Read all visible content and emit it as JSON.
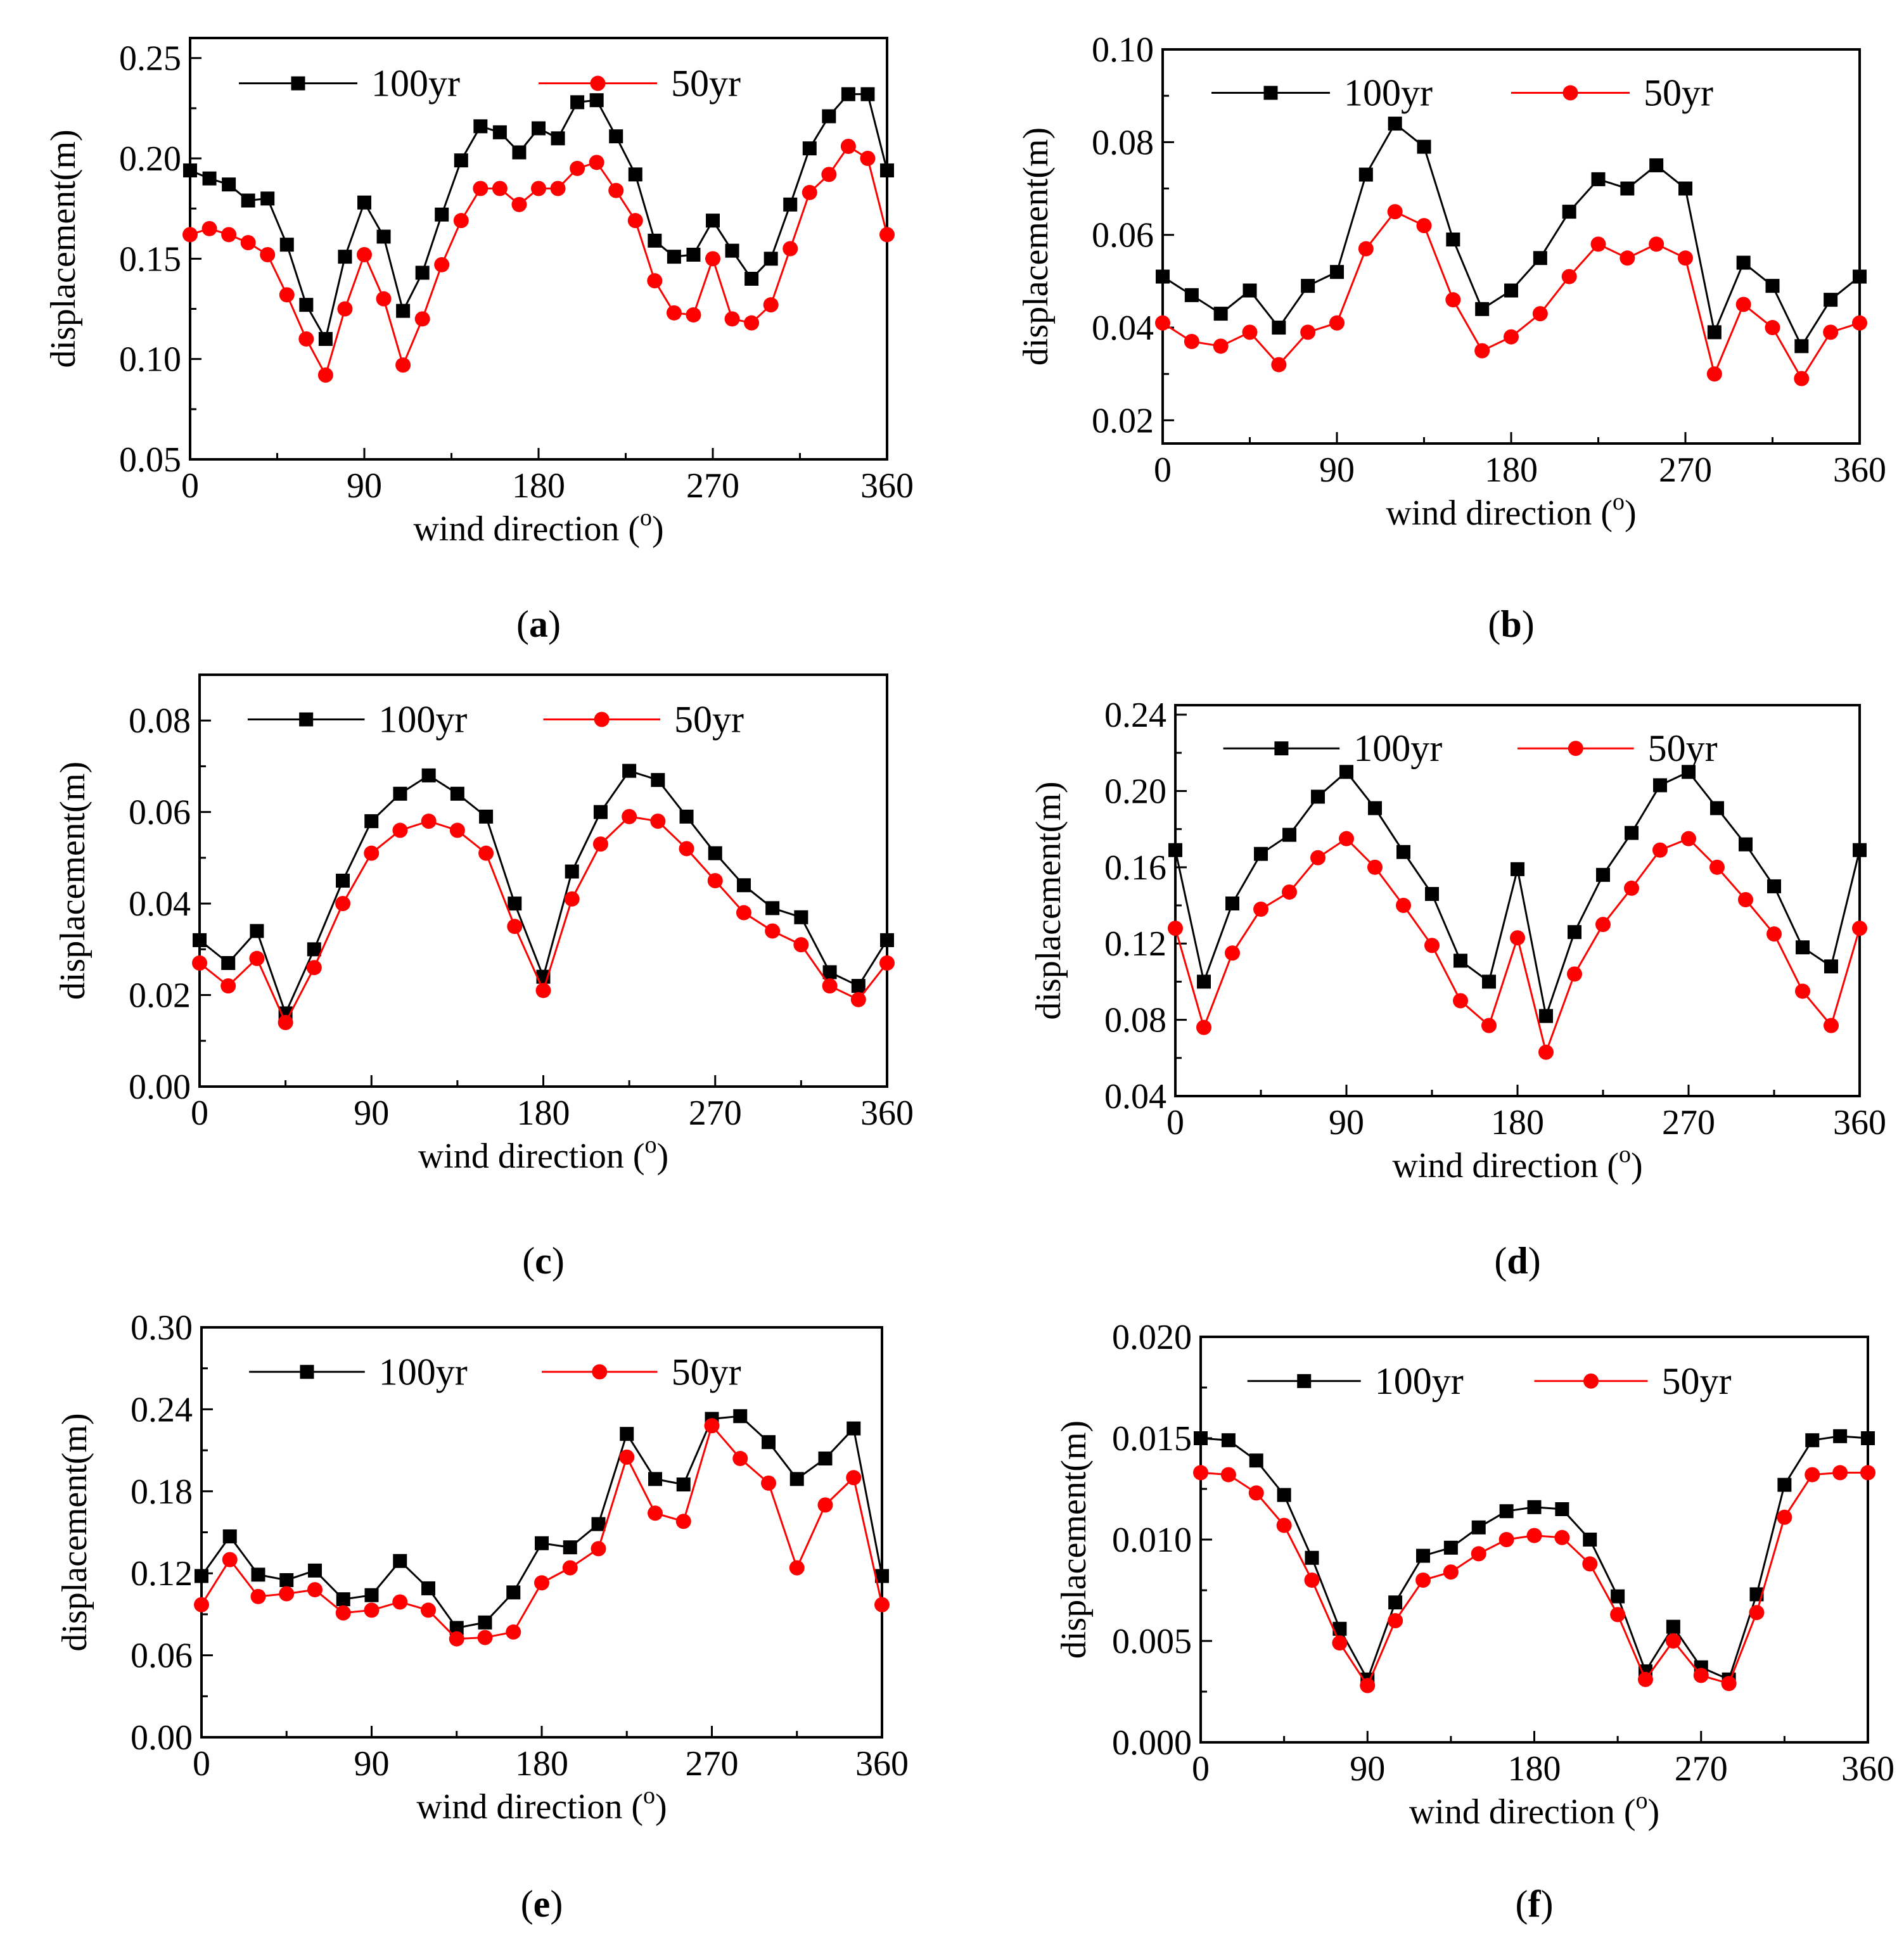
{
  "figure": {
    "colors": {
      "series_100yr": "#000000",
      "series_50yr": "#ff0000",
      "axis": "#000000"
    },
    "markers": {
      "series_100yr": "square",
      "series_50yr": "circle"
    }
  },
  "chart_data": [
    {
      "id": "a",
      "type": "line",
      "caption": {
        "open": "(",
        "letter": "a",
        "close": ")"
      },
      "title": "",
      "xlabel": "wind direction (",
      "xlabel_degree": "o",
      "xlabel_close": ")",
      "ylabel": "displacement(m)",
      "xlim": [
        0,
        360
      ],
      "ylim": [
        0.05,
        0.26
      ],
      "xticks": [
        0,
        90,
        180,
        270,
        360
      ],
      "xtick_labels": [
        "0",
        "90",
        "180",
        "270",
        "360"
      ],
      "yticks": [
        0.05,
        0.1,
        0.15,
        0.2,
        0.25
      ],
      "ytick_labels": [
        "0.05",
        "0.10",
        "0.15",
        "0.20",
        "0.25"
      ],
      "legend_position": "top",
      "x": [
        0,
        10,
        20,
        30,
        40,
        50,
        60,
        70,
        80,
        90,
        100,
        110,
        120,
        130,
        140,
        150,
        160,
        170,
        180,
        190,
        200,
        210,
        220,
        230,
        240,
        250,
        260,
        270,
        280,
        290,
        300,
        310,
        320,
        330,
        340,
        350,
        360
      ],
      "series": [
        {
          "name": "100yr",
          "values": [
            0.194,
            0.19,
            0.187,
            0.179,
            0.18,
            0.157,
            0.127,
            0.11,
            0.151,
            0.178,
            0.161,
            0.124,
            0.143,
            0.172,
            0.199,
            0.216,
            0.213,
            0.203,
            0.215,
            0.21,
            0.228,
            0.229,
            0.211,
            0.192,
            0.159,
            0.151,
            0.152,
            0.169,
            0.154,
            0.14,
            0.15,
            0.177,
            0.205,
            0.221,
            0.232,
            0.232,
            0.194
          ]
        },
        {
          "name": "50yr",
          "values": [
            0.162,
            0.165,
            0.162,
            0.158,
            0.152,
            0.132,
            0.11,
            0.092,
            0.125,
            0.152,
            0.13,
            0.097,
            0.12,
            0.147,
            0.169,
            0.185,
            0.185,
            0.177,
            0.185,
            0.185,
            0.195,
            0.198,
            0.184,
            0.169,
            0.139,
            0.123,
            0.122,
            0.15,
            0.12,
            0.118,
            0.127,
            0.155,
            0.183,
            0.192,
            0.206,
            0.2,
            0.162
          ]
        }
      ]
    },
    {
      "id": "b",
      "type": "line",
      "caption": {
        "open": "(",
        "letter": "b",
        "close": ")"
      },
      "title": "",
      "xlabel": "wind direction (",
      "xlabel_degree": "o",
      "xlabel_close": ")",
      "ylabel": "displacement(m)",
      "xlim": [
        0,
        360
      ],
      "ylim": [
        0.015,
        0.1
      ],
      "xticks": [
        0,
        90,
        180,
        270,
        360
      ],
      "xtick_labels": [
        "0",
        "90",
        "180",
        "270",
        "360"
      ],
      "yticks": [
        0.02,
        0.04,
        0.06,
        0.08,
        0.1
      ],
      "ytick_labels": [
        "0.02",
        "0.04",
        "0.06",
        "0.08",
        "0.10"
      ],
      "legend_position": "top",
      "x": [
        0,
        15,
        30,
        45,
        60,
        75,
        90,
        105,
        120,
        135,
        150,
        165,
        180,
        195,
        210,
        225,
        240,
        255,
        270,
        285,
        300,
        315,
        330,
        345,
        360
      ],
      "series": [
        {
          "name": "100yr",
          "values": [
            0.051,
            0.047,
            0.043,
            0.048,
            0.04,
            0.049,
            0.052,
            0.073,
            0.084,
            0.079,
            0.059,
            0.044,
            0.048,
            0.055,
            0.065,
            0.072,
            0.07,
            0.075,
            0.07,
            0.039,
            0.054,
            0.049,
            0.036,
            0.046,
            0.051
          ]
        },
        {
          "name": "50yr",
          "values": [
            0.041,
            0.037,
            0.036,
            0.039,
            0.032,
            0.039,
            0.041,
            0.057,
            0.065,
            0.062,
            0.046,
            0.035,
            0.038,
            0.043,
            0.051,
            0.058,
            0.055,
            0.058,
            0.055,
            0.03,
            0.045,
            0.04,
            0.029,
            0.039,
            0.041
          ]
        }
      ]
    },
    {
      "id": "c",
      "type": "line",
      "caption": {
        "open": "(",
        "letter": "c",
        "close": ")"
      },
      "title": "",
      "xlabel": "wind direction (",
      "xlabel_degree": "o",
      "xlabel_close": ")",
      "ylabel": "displacement(m)",
      "xlim": [
        0,
        360
      ],
      "ylim": [
        0.0,
        0.09
      ],
      "xticks": [
        0,
        90,
        180,
        270,
        360
      ],
      "xtick_labels": [
        "0",
        "90",
        "180",
        "270",
        "360"
      ],
      "yticks": [
        0.0,
        0.02,
        0.04,
        0.06,
        0.08
      ],
      "ytick_labels": [
        "0.00",
        "0.02",
        "0.04",
        "0.06",
        "0.08"
      ],
      "legend_position": "top",
      "x": [
        0,
        15,
        30,
        45,
        60,
        75,
        90,
        105,
        120,
        135,
        150,
        165,
        180,
        195,
        210,
        225,
        240,
        255,
        270,
        285,
        300,
        315,
        330,
        345,
        360
      ],
      "series": [
        {
          "name": "100yr",
          "values": [
            0.032,
            0.027,
            0.034,
            0.016,
            0.03,
            0.045,
            0.058,
            0.064,
            0.068,
            0.064,
            0.059,
            0.04,
            0.024,
            0.047,
            0.06,
            0.069,
            0.067,
            0.059,
            0.051,
            0.044,
            0.039,
            0.037,
            0.025,
            0.022,
            0.032
          ]
        },
        {
          "name": "50yr",
          "values": [
            0.027,
            0.022,
            0.028,
            0.014,
            0.026,
            0.04,
            0.051,
            0.056,
            0.058,
            0.056,
            0.051,
            0.035,
            0.021,
            0.041,
            0.053,
            0.059,
            0.058,
            0.052,
            0.045,
            0.038,
            0.034,
            0.031,
            0.022,
            0.019,
            0.027
          ]
        }
      ]
    },
    {
      "id": "d",
      "type": "line",
      "caption": {
        "open": "(",
        "letter": "d",
        "close": ")"
      },
      "title": "",
      "xlabel": "wind direction (",
      "xlabel_degree": "o",
      "xlabel_close": ")",
      "ylabel": "displacement(m)",
      "xlim": [
        0,
        360
      ],
      "ylim": [
        0.04,
        0.245
      ],
      "xticks": [
        0,
        90,
        180,
        270,
        360
      ],
      "xtick_labels": [
        "0",
        "90",
        "180",
        "270",
        "360"
      ],
      "yticks": [
        0.04,
        0.08,
        0.12,
        0.16,
        0.2,
        0.24
      ],
      "ytick_labels": [
        "0.04",
        "0.08",
        "0.12",
        "0.16",
        "0.20",
        "0.24"
      ],
      "legend_position": "top",
      "x": [
        0,
        15,
        30,
        45,
        60,
        75,
        90,
        105,
        120,
        135,
        150,
        165,
        180,
        195,
        210,
        225,
        240,
        255,
        270,
        285,
        300,
        315,
        330,
        345,
        360
      ],
      "series": [
        {
          "name": "100yr",
          "values": [
            0.169,
            0.1,
            0.141,
            0.167,
            0.177,
            0.197,
            0.21,
            0.191,
            0.168,
            0.146,
            0.111,
            0.1,
            0.159,
            0.082,
            0.126,
            0.156,
            0.178,
            0.203,
            0.21,
            0.191,
            0.172,
            0.15,
            0.118,
            0.108,
            0.169
          ]
        },
        {
          "name": "50yr",
          "values": [
            0.128,
            0.076,
            0.115,
            0.138,
            0.147,
            0.165,
            0.175,
            0.16,
            0.14,
            0.119,
            0.09,
            0.077,
            0.123,
            0.063,
            0.104,
            0.13,
            0.149,
            0.169,
            0.175,
            0.16,
            0.143,
            0.125,
            0.095,
            0.077,
            0.128
          ]
        }
      ]
    },
    {
      "id": "e",
      "type": "line",
      "caption": {
        "open": "(",
        "letter": "e",
        "close": ")"
      },
      "title": "",
      "xlabel": "wind direction (",
      "xlabel_degree": "o",
      "xlabel_close": ")",
      "ylabel": "displacement(m)",
      "xlim": [
        0,
        360
      ],
      "ylim": [
        0.0,
        0.3
      ],
      "xticks": [
        0,
        90,
        180,
        270,
        360
      ],
      "xtick_labels": [
        "0",
        "90",
        "180",
        "270",
        "360"
      ],
      "yticks": [
        0.0,
        0.06,
        0.12,
        0.18,
        0.24,
        0.3
      ],
      "ytick_labels": [
        "0.00",
        "0.06",
        "0.12",
        "0.18",
        "0.24",
        "0.30"
      ],
      "legend_position": "top",
      "x": [
        0,
        15,
        30,
        45,
        60,
        75,
        90,
        105,
        120,
        135,
        150,
        165,
        180,
        195,
        210,
        225,
        240,
        255,
        270,
        285,
        300,
        315,
        330,
        345,
        360
      ],
      "series": [
        {
          "name": "100yr",
          "values": [
            0.118,
            0.147,
            0.119,
            0.115,
            0.122,
            0.101,
            0.104,
            0.129,
            0.109,
            0.08,
            0.084,
            0.106,
            0.142,
            0.139,
            0.156,
            0.222,
            0.189,
            0.185,
            0.233,
            0.235,
            0.216,
            0.189,
            0.204,
            0.226,
            0.118
          ]
        },
        {
          "name": "50yr",
          "values": [
            0.097,
            0.13,
            0.103,
            0.105,
            0.108,
            0.091,
            0.093,
            0.099,
            0.093,
            0.072,
            0.073,
            0.077,
            0.113,
            0.124,
            0.138,
            0.205,
            0.164,
            0.158,
            0.228,
            0.204,
            0.186,
            0.124,
            0.17,
            0.19,
            0.097
          ]
        }
      ]
    },
    {
      "id": "f",
      "type": "line",
      "caption": {
        "open": "(",
        "letter": "f",
        "close": ")"
      },
      "title": "",
      "xlabel": "wind direction (",
      "xlabel_degree": "o",
      "xlabel_close": ")",
      "ylabel": "displacement(m)",
      "xlim": [
        0,
        360
      ],
      "ylim": [
        0.0,
        0.02
      ],
      "xticks": [
        0,
        90,
        180,
        270,
        360
      ],
      "xtick_labels": [
        "0",
        "90",
        "180",
        "270",
        "360"
      ],
      "yticks": [
        0.0,
        0.005,
        0.01,
        0.015,
        0.02
      ],
      "ytick_labels": [
        "0.000",
        "0.005",
        "0.010",
        "0.015",
        "0.020"
      ],
      "legend_position": "top",
      "x": [
        0,
        15,
        30,
        45,
        60,
        75,
        90,
        105,
        120,
        135,
        150,
        165,
        180,
        195,
        210,
        225,
        240,
        255,
        270,
        285,
        300,
        315,
        330,
        345,
        360
      ],
      "series": [
        {
          "name": "100yr",
          "values": [
            0.015,
            0.0149,
            0.0139,
            0.0122,
            0.0091,
            0.0056,
            0.0031,
            0.0069,
            0.0092,
            0.0096,
            0.0106,
            0.0114,
            0.0116,
            0.0115,
            0.01,
            0.0072,
            0.0035,
            0.0057,
            0.0037,
            0.0031,
            0.0073,
            0.0127,
            0.0149,
            0.0151,
            0.015
          ]
        },
        {
          "name": "50yr",
          "values": [
            0.0133,
            0.0132,
            0.0123,
            0.0107,
            0.008,
            0.0049,
            0.0028,
            0.006,
            0.008,
            0.0084,
            0.0093,
            0.01,
            0.0102,
            0.0101,
            0.0088,
            0.0063,
            0.0031,
            0.005,
            0.0033,
            0.0029,
            0.0064,
            0.0111,
            0.0132,
            0.0133,
            0.0133
          ]
        }
      ]
    }
  ]
}
